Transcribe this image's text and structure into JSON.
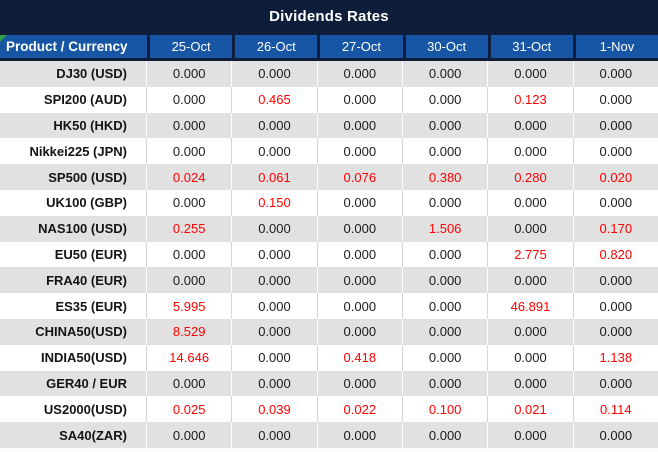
{
  "title": "Dividends Rates",
  "row_header_label": "Product / Currency",
  "columns": [
    "25-Oct",
    "26-Oct",
    "27-Oct",
    "30-Oct",
    "31-Oct",
    "1-Nov"
  ],
  "rows": [
    {
      "product": "DJ30 (USD)",
      "values": [
        "0.000",
        "0.000",
        "0.000",
        "0.000",
        "0.000",
        "0.000"
      ]
    },
    {
      "product": "SPI200 (AUD)",
      "values": [
        "0.000",
        "0.465",
        "0.000",
        "0.000",
        "0.123",
        "0.000"
      ]
    },
    {
      "product": "HK50 (HKD)",
      "values": [
        "0.000",
        "0.000",
        "0.000",
        "0.000",
        "0.000",
        "0.000"
      ]
    },
    {
      "product": "Nikkei225 (JPN)",
      "values": [
        "0.000",
        "0.000",
        "0.000",
        "0.000",
        "0.000",
        "0.000"
      ]
    },
    {
      "product": "SP500 (USD)",
      "values": [
        "0.024",
        "0.061",
        "0.076",
        "0.380",
        "0.280",
        "0.020"
      ]
    },
    {
      "product": "UK100 (GBP)",
      "values": [
        "0.000",
        "0.150",
        "0.000",
        "0.000",
        "0.000",
        "0.000"
      ]
    },
    {
      "product": "NAS100 (USD)",
      "values": [
        "0.255",
        "0.000",
        "0.000",
        "1.506",
        "0.000",
        "0.170"
      ]
    },
    {
      "product": "EU50 (EUR)",
      "values": [
        "0.000",
        "0.000",
        "0.000",
        "0.000",
        "2.775",
        "0.820"
      ]
    },
    {
      "product": "FRA40 (EUR)",
      "values": [
        "0.000",
        "0.000",
        "0.000",
        "0.000",
        "0.000",
        "0.000"
      ]
    },
    {
      "product": "ES35 (EUR)",
      "values": [
        "5.995",
        "0.000",
        "0.000",
        "0.000",
        "46.891",
        "0.000"
      ]
    },
    {
      "product": "CHINA50(USD)",
      "values": [
        "8.529",
        "0.000",
        "0.000",
        "0.000",
        "0.000",
        "0.000"
      ]
    },
    {
      "product": "INDIA50(USD)",
      "values": [
        "14.646",
        "0.000",
        "0.418",
        "0.000",
        "0.000",
        "1.138"
      ]
    },
    {
      "product": "GER40 / EUR",
      "values": [
        "0.000",
        "0.000",
        "0.000",
        "0.000",
        "0.000",
        "0.000"
      ]
    },
    {
      "product": "US2000(USD)",
      "values": [
        "0.025",
        "0.039",
        "0.022",
        "0.100",
        "0.021",
        "0.114"
      ]
    },
    {
      "product": "SA40(ZAR)",
      "values": [
        "0.000",
        "0.000",
        "0.000",
        "0.000",
        "0.000",
        "0.000"
      ]
    }
  ],
  "colors": {
    "navy_background": "#0e1d3a",
    "header_blue": "#1656a4",
    "row_gray": "#e1e1e1",
    "value_text": "#1b1b1b",
    "nonzero_red": "#ff0000",
    "note_indicator_green": "#2f9e44"
  },
  "zero_value": "0.000"
}
